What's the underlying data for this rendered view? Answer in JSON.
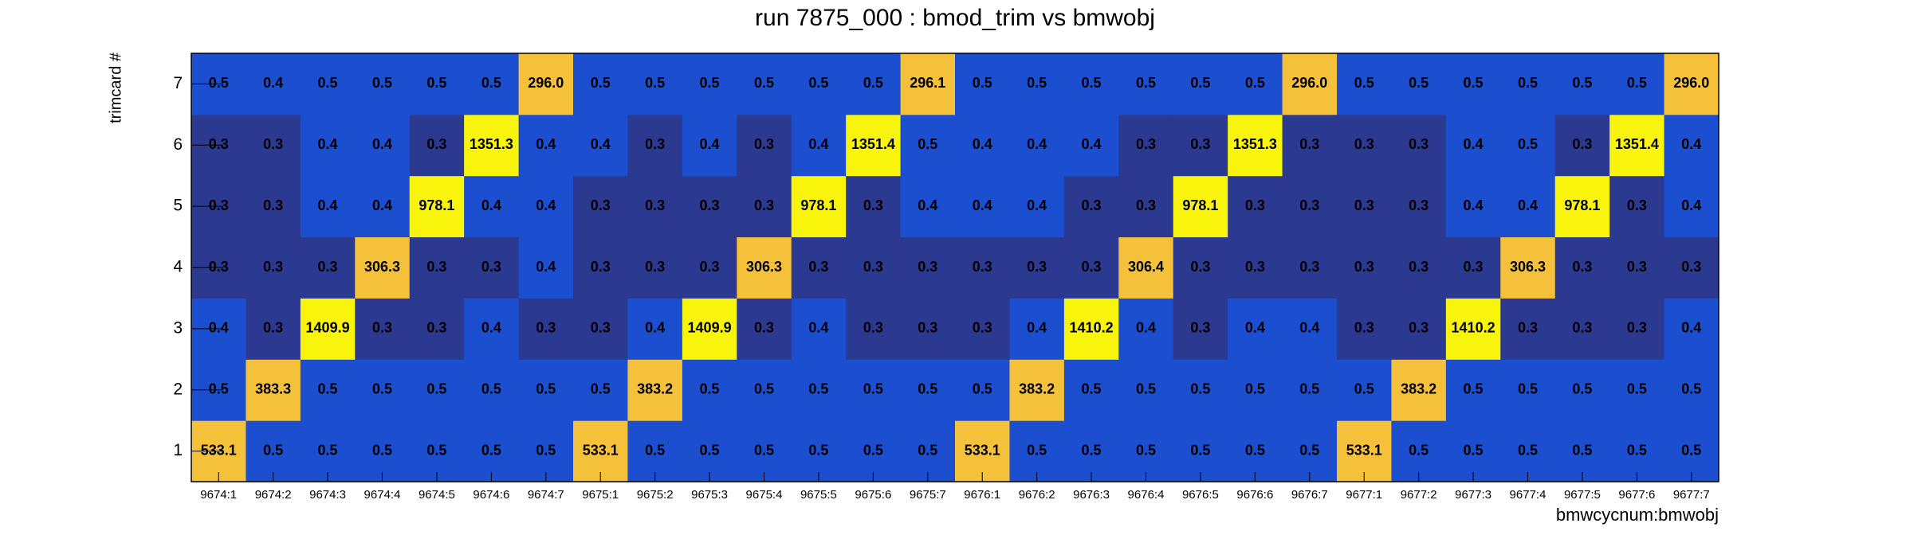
{
  "chart_data": {
    "type": "heatmap",
    "title": "run 7875_000 : bmod_trim vs bmwobj",
    "x_label": "bmwcycnum:bmwobj",
    "y_label": "trimcard #",
    "categories": [
      "9674:1",
      "9674:2",
      "9674:3",
      "9674:4",
      "9674:5",
      "9674:6",
      "9674:7",
      "9675:1",
      "9675:2",
      "9675:3",
      "9675:4",
      "9675:5",
      "9675:6",
      "9675:7",
      "9676:1",
      "9676:2",
      "9676:3",
      "9676:4",
      "9676:5",
      "9676:6",
      "9676:7",
      "9677:1",
      "9677:2",
      "9677:3",
      "9677:4",
      "9677:5",
      "9677:6",
      "9677:7"
    ],
    "y_categories": [
      "1",
      "2",
      "3",
      "4",
      "5",
      "6",
      "7"
    ],
    "palette": [
      "#2b3990",
      "#1c4ed0",
      "#1c4ed0",
      "#1c4ed0",
      "#1c4ed0",
      "#1c4ed0",
      "#1c4ed0",
      "#1c4ed0",
      "#1c4ed0",
      "#1c4ed0",
      "#1c4ed0",
      "#1c4ed0",
      "#1c4ed0",
      "#1c4ed0",
      "#1c4ed0",
      "#1c4ed0",
      "#1c4ed0",
      "#1c4ed0",
      "#1c4ed0",
      "#1c4ed0",
      "#1c4ed0",
      "#1c4ed0",
      "#1c4ed0",
      "#f5c13a",
      "#f5c13a",
      "#f5c13a",
      "#f5c13a",
      "#f5c13a",
      "#f8f40c",
      "#f8f40c"
    ],
    "values": [
      [
        533.1,
        0.5,
        0.5,
        0.5,
        0.5,
        0.5,
        0.5,
        533.1,
        0.5,
        0.5,
        0.5,
        0.5,
        0.5,
        0.5,
        533.1,
        0.5,
        0.5,
        0.5,
        0.5,
        0.5,
        0.5,
        533.1,
        0.5,
        0.5,
        0.5,
        0.5,
        0.5,
        0.5
      ],
      [
        0.5,
        383.3,
        0.5,
        0.5,
        0.5,
        0.5,
        0.5,
        0.5,
        383.2,
        0.5,
        0.5,
        0.5,
        0.5,
        0.5,
        0.5,
        383.2,
        0.5,
        0.5,
        0.5,
        0.5,
        0.5,
        0.5,
        383.2,
        0.5,
        0.5,
        0.5,
        0.5,
        0.5
      ],
      [
        0.4,
        0.3,
        1409.9,
        0.3,
        0.3,
        0.4,
        0.3,
        0.3,
        0.4,
        1409.9,
        0.3,
        0.4,
        0.3,
        0.3,
        0.3,
        0.4,
        1410.2,
        0.4,
        0.3,
        0.4,
        0.4,
        0.3,
        0.3,
        1410.2,
        0.3,
        0.3,
        0.3,
        0.4
      ],
      [
        0.3,
        0.3,
        0.3,
        306.3,
        0.3,
        0.3,
        0.4,
        0.3,
        0.3,
        0.3,
        306.3,
        0.3,
        0.3,
        0.3,
        0.3,
        0.3,
        0.3,
        306.4,
        0.3,
        0.3,
        0.3,
        0.3,
        0.3,
        0.3,
        306.3,
        0.3,
        0.3,
        0.3
      ],
      [
        0.3,
        0.3,
        0.4,
        0.4,
        978.1,
        0.4,
        0.4,
        0.3,
        0.3,
        0.3,
        0.3,
        978.1,
        0.3,
        0.4,
        0.4,
        0.4,
        0.3,
        0.3,
        978.1,
        0.3,
        0.3,
        0.3,
        0.3,
        0.4,
        0.4,
        978.1,
        0.3,
        0.4
      ],
      [
        0.3,
        0.3,
        0.4,
        0.4,
        0.3,
        1351.3,
        0.4,
        0.4,
        0.3,
        0.4,
        0.3,
        0.4,
        1351.4,
        0.5,
        0.4,
        0.4,
        0.4,
        0.3,
        0.3,
        1351.3,
        0.3,
        0.3,
        0.3,
        0.4,
        0.5,
        0.3,
        1351.4,
        0.4
      ],
      [
        0.5,
        0.4,
        0.5,
        0.5,
        0.5,
        0.5,
        296.0,
        0.5,
        0.5,
        0.5,
        0.5,
        0.5,
        0.5,
        296.1,
        0.5,
        0.5,
        0.5,
        0.5,
        0.5,
        0.5,
        296.0,
        0.5,
        0.5,
        0.5,
        0.5,
        0.5,
        0.5,
        296.0
      ]
    ],
    "value_labels": [
      [
        "533.1",
        "0.5",
        "0.5",
        "0.5",
        "0.5",
        "0.5",
        "0.5",
        "533.1",
        "0.5",
        "0.5",
        "0.5",
        "0.5",
        "0.5",
        "0.5",
        "533.1",
        "0.5",
        "0.5",
        "0.5",
        "0.5",
        "0.5",
        "0.5",
        "533.1",
        "0.5",
        "0.5",
        "0.5",
        "0.5",
        "0.5",
        "0.5"
      ],
      [
        "0.5",
        "383.3",
        "0.5",
        "0.5",
        "0.5",
        "0.5",
        "0.5",
        "0.5",
        "383.2",
        "0.5",
        "0.5",
        "0.5",
        "0.5",
        "0.5",
        "0.5",
        "383.2",
        "0.5",
        "0.5",
        "0.5",
        "0.5",
        "0.5",
        "0.5",
        "383.2",
        "0.5",
        "0.5",
        "0.5",
        "0.5",
        "0.5"
      ],
      [
        "0.4",
        "0.3",
        "1409.9",
        "0.3",
        "0.3",
        "0.4",
        "0.3",
        "0.3",
        "0.4",
        "1409.9",
        "0.3",
        "0.4",
        "0.3",
        "0.3",
        "0.3",
        "0.4",
        "1410.2",
        "0.4",
        "0.3",
        "0.4",
        "0.4",
        "0.3",
        "0.3",
        "1410.2",
        "0.3",
        "0.3",
        "0.3",
        "0.4"
      ],
      [
        "0.3",
        "0.3",
        "0.3",
        "306.3",
        "0.3",
        "0.3",
        "0.4",
        "0.3",
        "0.3",
        "0.3",
        "306.3",
        "0.3",
        "0.3",
        "0.3",
        "0.3",
        "0.3",
        "0.3",
        "306.4",
        "0.3",
        "0.3",
        "0.3",
        "0.3",
        "0.3",
        "0.3",
        "306.3",
        "0.3",
        "0.3",
        "0.3"
      ],
      [
        "0.3",
        "0.3",
        "0.4",
        "0.4",
        "978.1",
        "0.4",
        "0.4",
        "0.3",
        "0.3",
        "0.3",
        "0.3",
        "978.1",
        "0.3",
        "0.4",
        "0.4",
        "0.4",
        "0.3",
        "0.3",
        "978.1",
        "0.3",
        "0.3",
        "0.3",
        "0.3",
        "0.4",
        "0.4",
        "978.1",
        "0.3",
        "0.4"
      ],
      [
        "0.3",
        "0.3",
        "0.4",
        "0.4",
        "0.3",
        "1351.3",
        "0.4",
        "0.4",
        "0.3",
        "0.4",
        "0.3",
        "0.4",
        "1351.4",
        "0.5",
        "0.4",
        "0.4",
        "0.4",
        "0.3",
        "0.3",
        "1351.3",
        "0.3",
        "0.3",
        "0.3",
        "0.4",
        "0.5",
        "0.3",
        "1351.4",
        "0.4"
      ],
      [
        "0.5",
        "0.4",
        "0.5",
        "0.5",
        "0.5",
        "0.5",
        "296.0",
        "0.5",
        "0.5",
        "0.5",
        "0.5",
        "0.5",
        "0.5",
        "296.1",
        "0.5",
        "0.5",
        "0.5",
        "0.5",
        "0.5",
        "0.5",
        "296.0",
        "0.5",
        "0.5",
        "0.5",
        "0.5",
        "0.5",
        "0.5",
        "296.0"
      ]
    ]
  }
}
